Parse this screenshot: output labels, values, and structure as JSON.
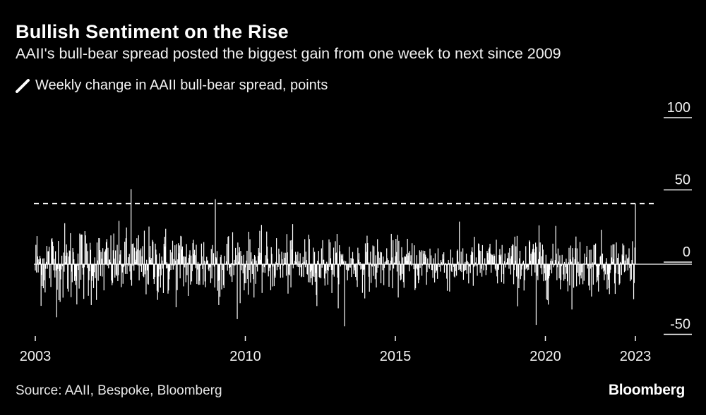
{
  "title": "Bullish Sentiment on the Rise",
  "subtitle": "AAII's bull-bear spread posted the biggest gain from one week to next since 2009",
  "legend_label": "Weekly change in AAII bull-bear spread, points",
  "source": "Source: AAII, Bespoke, Bloomberg",
  "brand": "Bloomberg",
  "colors": {
    "background": "#000000",
    "series": "#ffffff",
    "text": "#f2f2f2"
  },
  "chart_data": {
    "type": "bar",
    "series": [
      {
        "name": "Weekly change in AAII bull-bear spread, points"
      }
    ],
    "x_range": [
      2003,
      2023
    ],
    "x_ticks": [
      "2003",
      "2010",
      "2015",
      "2020",
      "2023"
    ],
    "ylim": [
      -50,
      100
    ],
    "y_ticks": [
      "100",
      "50",
      "0",
      "-50"
    ],
    "reference_line": {
      "y": 42,
      "style": "dashed"
    },
    "notable_points": [
      {
        "x": 2006.2,
        "y": 52
      },
      {
        "x": 2009.0,
        "y": 45
      },
      {
        "x": 2013.3,
        "y": -43
      },
      {
        "x": 2019.7,
        "y": -42
      },
      {
        "x": 2023.0,
        "y": 42
      }
    ],
    "weekly_values_note": "",
    "grid": false,
    "legend_position": "top-left"
  }
}
